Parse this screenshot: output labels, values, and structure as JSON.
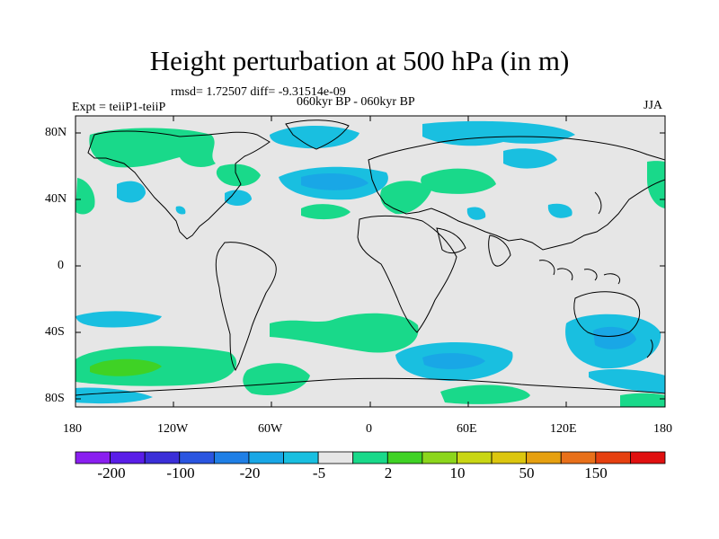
{
  "header": {
    "title": "Height perturbation at 500 hPa (in m)",
    "stats": "rmsd= 1.72507 diff= -9.31514e-09",
    "left": "Expt = teiiP1-teiiP",
    "center": "060kyr BP - 060kyr BP",
    "right": "JJA"
  },
  "axes": {
    "y_ticks": [
      "80N",
      "40N",
      "0",
      "40S",
      "80S"
    ],
    "x_ticks": [
      "180",
      "120W",
      "60W",
      "0",
      "60E",
      "120E",
      "180"
    ]
  },
  "colorbar": {
    "labels": [
      "-200",
      "-100",
      "-20",
      "-5",
      "2",
      "10",
      "50",
      "150"
    ],
    "colors": [
      "#8a1ff0",
      "#5a1ee8",
      "#3b2fd8",
      "#2a55e0",
      "#1f7fe6",
      "#19a7e6",
      "#19bfe0",
      "#e6e6e6",
      "#19d98a",
      "#3fd225",
      "#8cd61c",
      "#c9d614",
      "#dcc60f",
      "#e6a010",
      "#e8701a",
      "#e64010",
      "#e01010"
    ]
  },
  "colors": {
    "background_field": "#e6e6e6",
    "negative_light": "#19bfe0",
    "negative_mid": "#19a7e6",
    "positive_light": "#19d98a",
    "positive_mid": "#3fd225"
  }
}
